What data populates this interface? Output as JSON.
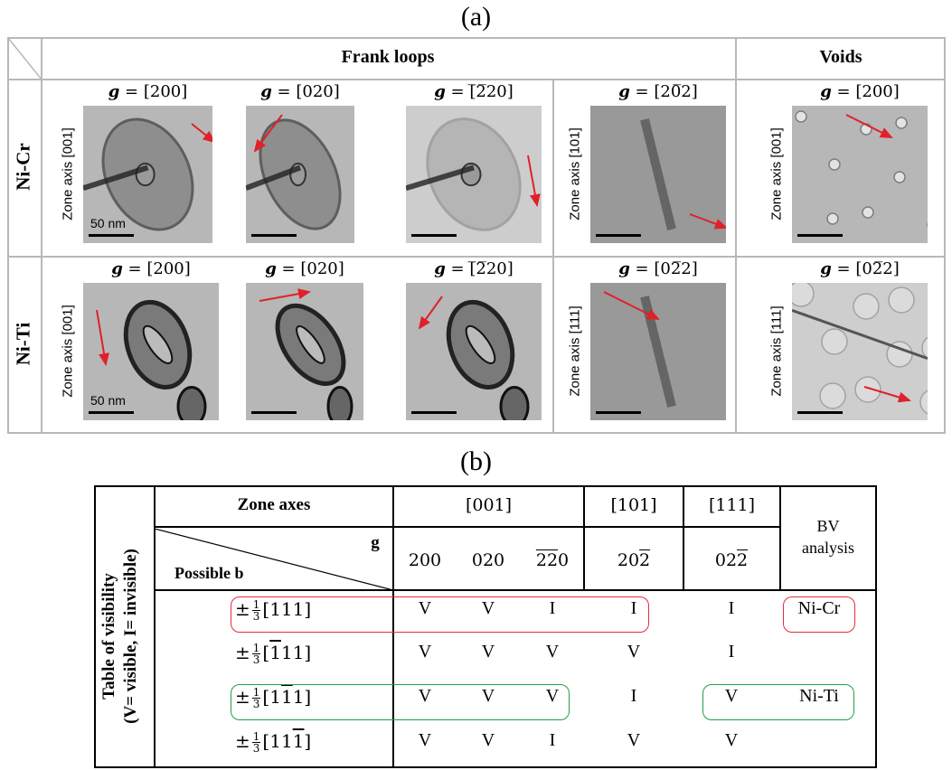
{
  "panel_a_label": "(a)",
  "panel_b_label": "(b)",
  "grid": {
    "header_frank": "Frank loops",
    "header_voids": "Voids",
    "rows": [
      {
        "label": "Ni-Cr",
        "cells": [
          {
            "g": "[200]",
            "zone": "Zone axis [001]",
            "scale_text": "50 nm"
          },
          {
            "g": "[020]",
            "zone": "",
            "scale_text": ""
          },
          {
            "g": "[̅2̅20]",
            "zone": "",
            "scale_text": ""
          },
          {
            "g": "[20̅2]",
            "zone": "Zone axis [101]",
            "scale_text": ""
          },
          {
            "g": "[200]",
            "zone": "Zone axis [001]",
            "scale_text": ""
          }
        ]
      },
      {
        "label": "Ni-Ti",
        "cells": [
          {
            "g": "[200]",
            "zone": "Zone axis [001]",
            "scale_text": "50 nm"
          },
          {
            "g": "[020]",
            "zone": "",
            "scale_text": ""
          },
          {
            "g": "[̅2̅20]",
            "zone": "",
            "scale_text": ""
          },
          {
            "g": "[02̅2]",
            "zone": "Zone axis [111]",
            "scale_text": ""
          },
          {
            "g": "[02̅2]",
            "zone": "Zone axis [111]",
            "scale_text": ""
          }
        ]
      }
    ],
    "g_prefix": "g",
    "g_eq": " = "
  },
  "table": {
    "side_label_line1": "Table of visibility",
    "side_label_line2": "(V= visible, I= invisible)",
    "zone_axes_label": "Zone axes",
    "zone_001": "[001]",
    "zone_101": "[101]",
    "zone_111": "[111]",
    "g_label": "g",
    "possible_b_label": "Possible b",
    "bv_line1": "BV",
    "bv_line2": "analysis",
    "g_cols": [
      "200",
      "020",
      "220",
      "202",
      "022"
    ],
    "b_prefix": "±",
    "frac_num": "1",
    "frac_den": "3",
    "rows": [
      {
        "b": "[111]",
        "vals": [
          "V",
          "V",
          "I",
          "I",
          "I"
        ],
        "bv": "Ni-Cr"
      },
      {
        "b": "[111]",
        "vals": [
          "V",
          "V",
          "V",
          "V",
          "I"
        ],
        "bv": ""
      },
      {
        "b": "[111]",
        "vals": [
          "V",
          "V",
          "V",
          "I",
          "V"
        ],
        "bv": "Ni-Ti"
      },
      {
        "b": "[111]",
        "vals": [
          "V",
          "V",
          "I",
          "V",
          "V"
        ],
        "bv": ""
      }
    ],
    "colors": {
      "red_box": "#e0303a",
      "green_box": "#22a045"
    }
  }
}
